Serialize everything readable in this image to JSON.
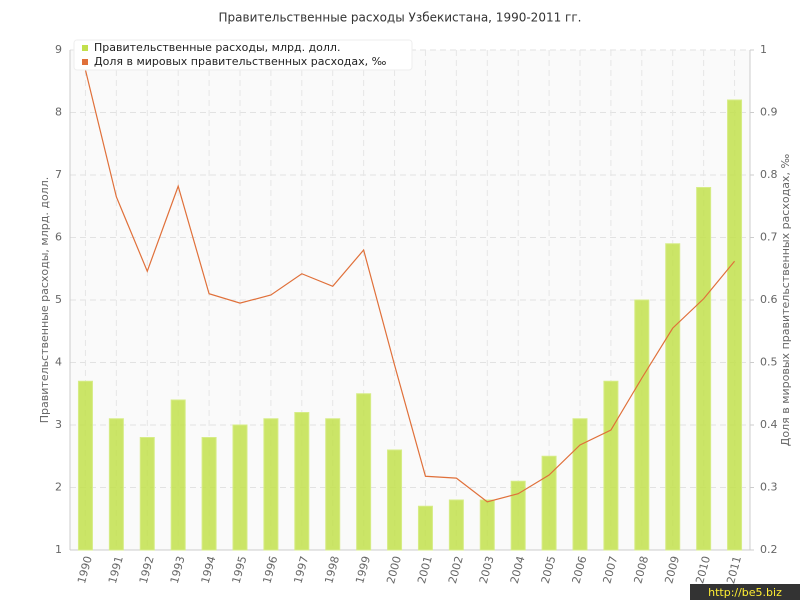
{
  "chart_data": {
    "type": "bar-line",
    "title": "Правительственные расходы Узбекистана, 1990-2011 гг.",
    "y_label": "Правительственные расходы, млрд. долл.",
    "y2_label": "Доля в мировых правительственных расходах, ‰",
    "categories": [
      "1990",
      "1991",
      "1992",
      "1993",
      "1994",
      "1995",
      "1996",
      "1997",
      "1998",
      "1999",
      "2000",
      "2001",
      "2002",
      "2003",
      "2004",
      "2005",
      "2006",
      "2007",
      "2008",
      "2009",
      "2010",
      "2011"
    ],
    "series": [
      {
        "name": "Правительственные расходы, млрд. долл.",
        "color": "#c2e04c",
        "type": "bar",
        "values": [
          3.7,
          3.1,
          2.8,
          3.4,
          2.8,
          3.0,
          3.1,
          3.2,
          3.1,
          3.5,
          2.6,
          1.7,
          1.8,
          1.8,
          2.1,
          2.5,
          3.1,
          3.7,
          5.0,
          5.9,
          6.8,
          8.2
        ]
      },
      {
        "name": "Доля в мировых правительственных расходах, ‰",
        "color": "#e0703a",
        "type": "line",
        "axis": "y2",
        "values": [
          0.968,
          0.765,
          0.646,
          0.782,
          0.61,
          0.595,
          0.608,
          0.642,
          0.622,
          0.68,
          0.496,
          0.318,
          0.315,
          0.277,
          0.29,
          0.32,
          0.368,
          0.392,
          0.475,
          0.555,
          0.602,
          0.662
        ]
      }
    ],
    "ylim": [
      1,
      9
    ],
    "yticks": [
      1,
      2,
      3,
      4,
      5,
      6,
      7,
      8,
      9
    ],
    "y2lim": [
      0.2,
      1
    ],
    "y2ticks": [
      0.2,
      0.3,
      0.4,
      0.5,
      0.6,
      0.7,
      0.8,
      0.9,
      1
    ],
    "grid": true,
    "legend": "upper left",
    "watermark": "http://be5.biz"
  }
}
